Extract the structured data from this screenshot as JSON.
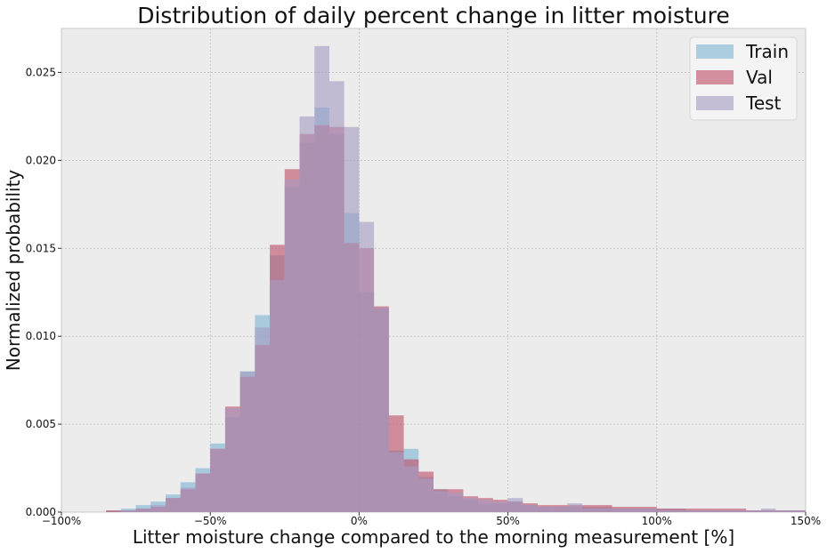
{
  "chart_data": {
    "type": "bar",
    "title": "Distribution of daily percent change in litter moisture",
    "xlabel": "Litter moisture change compared to the morning measurement [%]",
    "ylabel": "Normalized probability",
    "xlim": [
      -100,
      150
    ],
    "ylim": [
      0,
      0.0275
    ],
    "grid": true,
    "legend_placement": "top-right",
    "bin_width": 5,
    "xticks": [
      {
        "value": -100,
        "label": "−100%"
      },
      {
        "value": -50,
        "label": "−50%"
      },
      {
        "value": 0,
        "label": "0%"
      },
      {
        "value": 50,
        "label": "50%"
      },
      {
        "value": 100,
        "label": "100%"
      },
      {
        "value": 150,
        "label": "150%"
      }
    ],
    "yticks": [
      {
        "value": 0,
        "label": "0.000"
      },
      {
        "value": 0.005,
        "label": "0.005"
      },
      {
        "value": 0.01,
        "label": "0.010"
      },
      {
        "value": 0.015,
        "label": "0.015"
      },
      {
        "value": 0.02,
        "label": "0.020"
      },
      {
        "value": 0.025,
        "label": "0.025"
      }
    ],
    "series": [
      {
        "name": "Train",
        "color": "#7fb4d4",
        "bins": [
          [
            -85,
            0.0001
          ],
          [
            -80,
            0.0002
          ],
          [
            -75,
            0.0004
          ],
          [
            -70,
            0.0006
          ],
          [
            -65,
            0.001
          ],
          [
            -60,
            0.0017
          ],
          [
            -55,
            0.0025
          ],
          [
            -50,
            0.0039
          ],
          [
            -45,
            0.0054
          ],
          [
            -40,
            0.008
          ],
          [
            -35,
            0.0112
          ],
          [
            -30,
            0.0146
          ],
          [
            -25,
            0.0185
          ],
          [
            -20,
            0.021
          ],
          [
            -15,
            0.023
          ],
          [
            -10,
            0.0215
          ],
          [
            -5,
            0.017
          ],
          [
            0,
            0.0125
          ],
          [
            5,
            0.0116
          ],
          [
            10,
            0.0035
          ],
          [
            15,
            0.0036
          ],
          [
            20,
            0.002
          ],
          [
            25,
            0.0013
          ],
          [
            30,
            0.0009
          ],
          [
            35,
            0.0007
          ],
          [
            40,
            0.0005
          ],
          [
            45,
            0.0005
          ],
          [
            50,
            0.0006
          ],
          [
            55,
            0.0004
          ],
          [
            60,
            0.0003
          ],
          [
            65,
            0.0003
          ],
          [
            70,
            0.0003
          ],
          [
            75,
            0.0003
          ],
          [
            80,
            0.0003
          ],
          [
            85,
            0.0002
          ],
          [
            90,
            0.0002
          ],
          [
            95,
            0.0002
          ],
          [
            100,
            0.0002
          ],
          [
            105,
            0.0002
          ],
          [
            110,
            0.0001
          ],
          [
            115,
            0.0001
          ],
          [
            120,
            0.0001
          ],
          [
            125,
            0.0001
          ],
          [
            130,
            0.0001
          ],
          [
            135,
            0.0001
          ],
          [
            140,
            0.0001
          ],
          [
            145,
            0.0001
          ]
        ]
      },
      {
        "name": "Val",
        "color": "#c0506a",
        "bins": [
          [
            -85,
            0.0001
          ],
          [
            -80,
            0.0001
          ],
          [
            -75,
            0.0002
          ],
          [
            -70,
            0.0003
          ],
          [
            -65,
            0.0008
          ],
          [
            -60,
            0.0013
          ],
          [
            -55,
            0.0022
          ],
          [
            -50,
            0.0036
          ],
          [
            -45,
            0.006
          ],
          [
            -40,
            0.0077
          ],
          [
            -35,
            0.0095
          ],
          [
            -30,
            0.0152
          ],
          [
            -25,
            0.0195
          ],
          [
            -20,
            0.0215
          ],
          [
            -15,
            0.022
          ],
          [
            -10,
            0.0219
          ],
          [
            -5,
            0.0153
          ],
          [
            0,
            0.015
          ],
          [
            5,
            0.0117
          ],
          [
            10,
            0.0055
          ],
          [
            15,
            0.003
          ],
          [
            20,
            0.0023
          ],
          [
            25,
            0.0013
          ],
          [
            30,
            0.0013
          ],
          [
            35,
            0.0009
          ],
          [
            40,
            0.0008
          ],
          [
            45,
            0.0007
          ],
          [
            50,
            0.0006
          ],
          [
            55,
            0.0005
          ],
          [
            60,
            0.0004
          ],
          [
            65,
            0.0004
          ],
          [
            70,
            0.0004
          ],
          [
            75,
            0.0004
          ],
          [
            80,
            0.0004
          ],
          [
            85,
            0.0003
          ],
          [
            90,
            0.0003
          ],
          [
            95,
            0.0003
          ],
          [
            100,
            0.0002
          ],
          [
            105,
            0.0002
          ],
          [
            110,
            0.0002
          ],
          [
            115,
            0.0002
          ],
          [
            120,
            0.0002
          ],
          [
            125,
            0.0002
          ],
          [
            130,
            0.0001
          ],
          [
            135,
            0.0001
          ],
          [
            140,
            0.0001
          ],
          [
            145,
            0.0001
          ]
        ]
      },
      {
        "name": "Test",
        "color": "#a49cc4",
        "bins": [
          [
            -85,
            0.0
          ],
          [
            -80,
            0.0001
          ],
          [
            -75,
            0.0002
          ],
          [
            -70,
            0.0004
          ],
          [
            -65,
            0.0008
          ],
          [
            -60,
            0.0014
          ],
          [
            -55,
            0.0022
          ],
          [
            -50,
            0.0036
          ],
          [
            -45,
            0.0059
          ],
          [
            -40,
            0.008
          ],
          [
            -35,
            0.0105
          ],
          [
            -30,
            0.0132
          ],
          [
            -25,
            0.0189
          ],
          [
            -20,
            0.0225
          ],
          [
            -15,
            0.0265
          ],
          [
            -10,
            0.0245
          ],
          [
            -5,
            0.0219
          ],
          [
            0,
            0.0165
          ],
          [
            5,
            0.0116
          ],
          [
            10,
            0.0034
          ],
          [
            15,
            0.0026
          ],
          [
            20,
            0.0019
          ],
          [
            25,
            0.0012
          ],
          [
            30,
            0.0011
          ],
          [
            35,
            0.0008
          ],
          [
            40,
            0.0007
          ],
          [
            45,
            0.0006
          ],
          [
            50,
            0.0008
          ],
          [
            55,
            0.0004
          ],
          [
            60,
            0.0003
          ],
          [
            65,
            0.0003
          ],
          [
            70,
            0.0005
          ],
          [
            75,
            0.0002
          ],
          [
            80,
            0.0002
          ],
          [
            85,
            0.0002
          ],
          [
            90,
            0.0002
          ],
          [
            95,
            0.0002
          ],
          [
            100,
            0.0001
          ],
          [
            105,
            0.0001
          ],
          [
            110,
            0.0001
          ],
          [
            115,
            0.0001
          ],
          [
            120,
            0.0001
          ],
          [
            125,
            0.0001
          ],
          [
            130,
            0.0001
          ],
          [
            135,
            0.0002
          ],
          [
            140,
            0.0001
          ],
          [
            145,
            0.0001
          ]
        ]
      }
    ]
  },
  "colors": {
    "plot_background": "#ececec",
    "grid": "#bdbdbd"
  }
}
